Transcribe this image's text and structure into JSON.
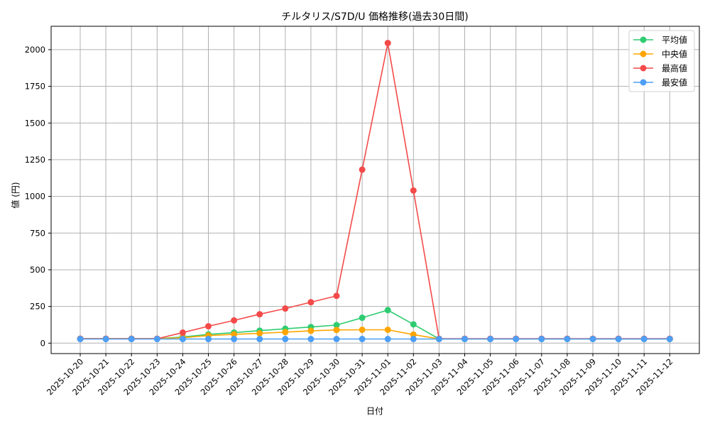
{
  "chart_data": {
    "type": "line",
    "title": "チルタリス/S7D/U 価格推移(過去30日間)",
    "xlabel": "日付",
    "ylabel": "値 (円)",
    "ylim": [
      -70,
      2140
    ],
    "yticks": [
      0,
      250,
      500,
      750,
      1000,
      1250,
      1500,
      1750,
      2000
    ],
    "grid": true,
    "legend_position": "upper right",
    "categories": [
      "2025-10-20",
      "2025-10-21",
      "2025-10-22",
      "2025-10-23",
      "2025-10-24",
      "2025-10-25",
      "2025-10-26",
      "2025-10-27",
      "2025-10-28",
      "2025-10-29",
      "2025-10-30",
      "2025-10-31",
      "2025-11-01",
      "2025-11-02",
      "2025-11-03",
      "2025-11-04",
      "2025-11-05",
      "2025-11-06",
      "2025-11-07",
      "2025-11-08",
      "2025-11-09",
      "2025-11-10",
      "2025-11-11",
      "2025-11-12"
    ],
    "series": [
      {
        "name": "平均値",
        "color": "#2ecc71",
        "values": [
          30,
          30,
          30,
          30,
          42,
          60,
          72,
          85,
          98,
          110,
          123,
          173,
          225,
          128,
          29,
          29,
          29,
          29,
          29,
          29,
          29,
          29,
          29,
          29
        ]
      },
      {
        "name": "中央値",
        "color": "#ffa500",
        "values": [
          30,
          30,
          30,
          30,
          37,
          52,
          60,
          67,
          75,
          84,
          90,
          91,
          91,
          58,
          29,
          29,
          29,
          29,
          29,
          29,
          29,
          29,
          29,
          29
        ]
      },
      {
        "name": "最高値",
        "color": "#f44a4a",
        "values": [
          30,
          30,
          30,
          30,
          72,
          115,
          155,
          197,
          236,
          279,
          322,
          1182,
          2045,
          1040,
          30,
          30,
          30,
          30,
          30,
          30,
          30,
          30,
          30,
          30
        ]
      },
      {
        "name": "最安値",
        "color": "#4d9ff5",
        "values": [
          28,
          28,
          28,
          28,
          28,
          28,
          28,
          28,
          28,
          28,
          28,
          28,
          28,
          28,
          28,
          28,
          28,
          28,
          28,
          28,
          28,
          28,
          28,
          28
        ]
      }
    ]
  }
}
